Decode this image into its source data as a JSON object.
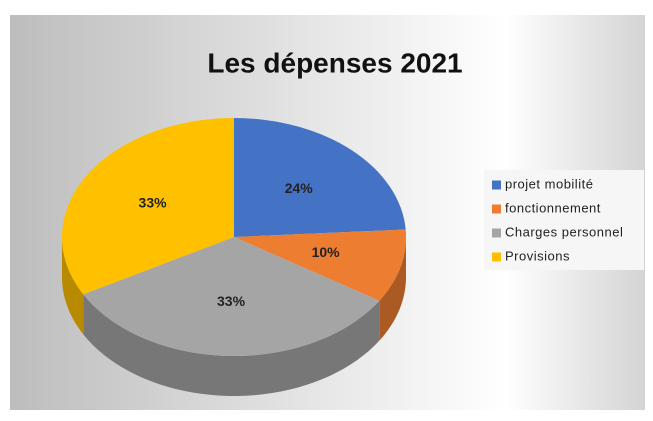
{
  "chart_data": {
    "type": "pie3d",
    "title": "Les dépenses 2021",
    "categories": [
      "projet mobilité",
      "fonctionnement",
      "Charges personnel",
      "Provisions"
    ],
    "values": [
      24,
      10,
      33,
      33
    ],
    "value_labels": [
      "24%",
      "10%",
      "33%",
      "33%"
    ],
    "colors": [
      "#4472c4",
      "#ed7d31",
      "#a5a5a5",
      "#ffc000"
    ],
    "legend": "right"
  }
}
